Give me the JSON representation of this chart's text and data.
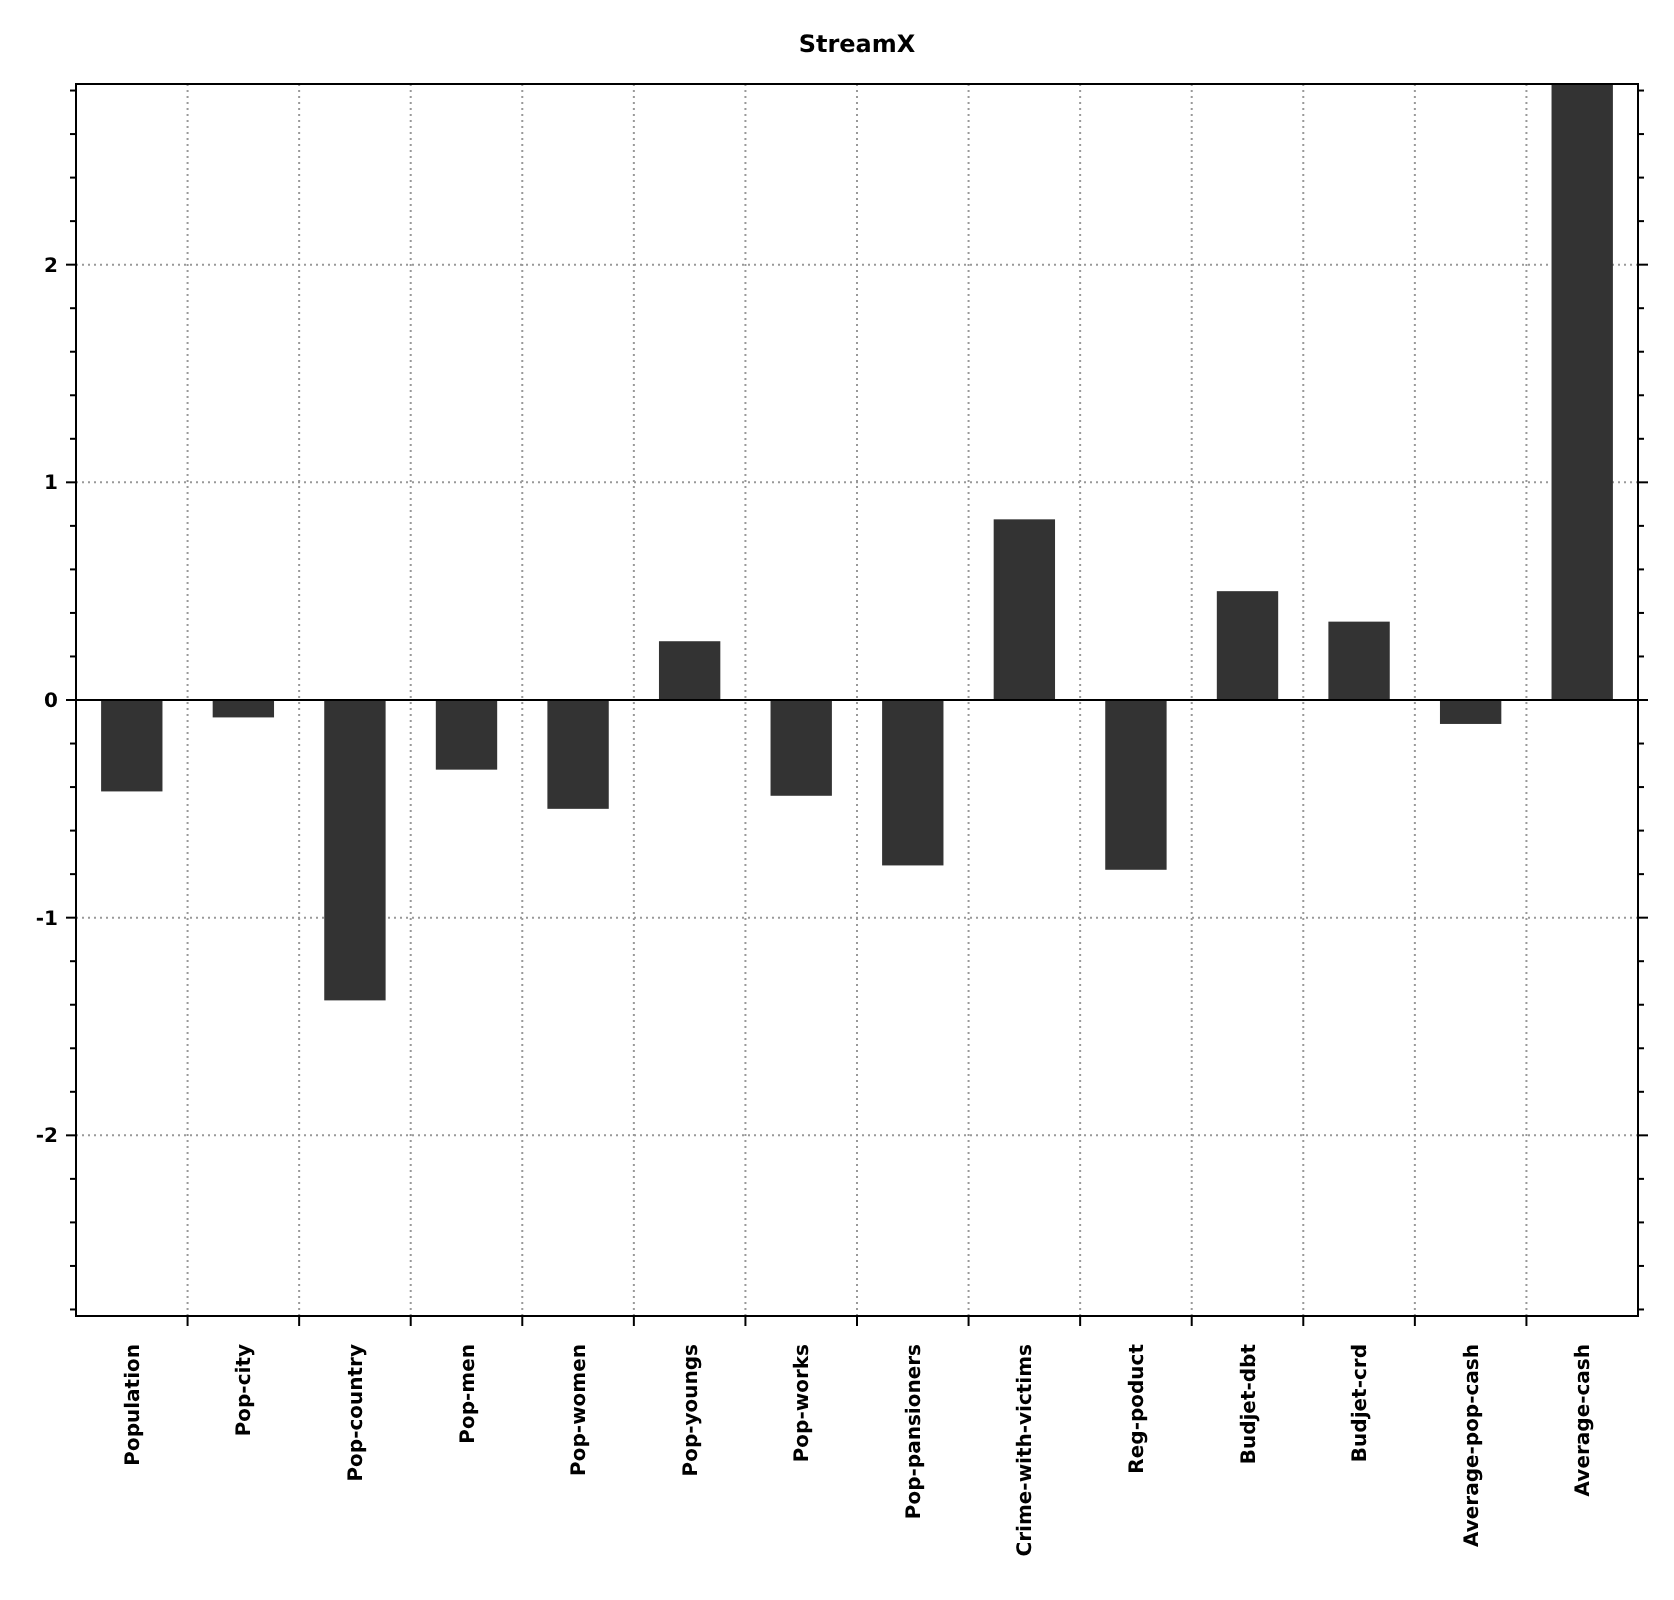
{
  "chart_data": {
    "type": "bar",
    "title": "StreamX",
    "categories": [
      "Population",
      "Pop-city",
      "Pop-country",
      "Pop-men",
      "Pop-women",
      "Pop-youngs",
      "Pop-works",
      "Pop-pansioners",
      "Crime-with-victims",
      "Reg-poduct",
      "Budjet-dbt",
      "Budjet-crd",
      "Average-pop-cash",
      "Average-cash"
    ],
    "values": [
      -0.42,
      -0.08,
      -1.38,
      -0.32,
      -0.5,
      0.27,
      -0.44,
      -0.76,
      0.83,
      -0.78,
      0.5,
      0.36,
      -0.11,
      2.83
    ],
    "color": "#333333",
    "ylim": [
      -2.83,
      2.83
    ],
    "yticks": [
      {
        "value": -2.8,
        "label": null
      },
      {
        "value": -2.6,
        "label": null
      },
      {
        "value": -2.4,
        "label": null
      },
      {
        "value": -2.2,
        "label": null
      },
      -2,
      {
        "value": -1.8,
        "label": null
      },
      {
        "value": -1.6,
        "label": null
      },
      {
        "value": -1.4,
        "label": null
      },
      {
        "value": -1.2,
        "label": null
      },
      -1,
      {
        "value": -0.8,
        "label": null
      },
      {
        "value": -0.6,
        "label": null
      },
      {
        "value": -0.4,
        "label": null
      },
      {
        "value": -0.2,
        "label": null
      },
      0,
      {
        "value": 0.2,
        "label": null
      },
      {
        "value": 0.4,
        "label": null
      },
      {
        "value": 0.6,
        "label": null
      },
      {
        "value": 0.8,
        "label": null
      },
      1,
      {
        "value": 1.2,
        "label": null
      },
      {
        "value": 1.4,
        "label": null
      },
      {
        "value": 1.6,
        "label": null
      },
      {
        "value": 1.8,
        "label": null
      },
      2,
      {
        "value": 2.2,
        "label": null
      },
      {
        "value": 2.4,
        "label": null
      },
      {
        "value": 2.6,
        "label": null
      },
      {
        "value": 2.8,
        "label": null
      }
    ],
    "grid": true
  }
}
